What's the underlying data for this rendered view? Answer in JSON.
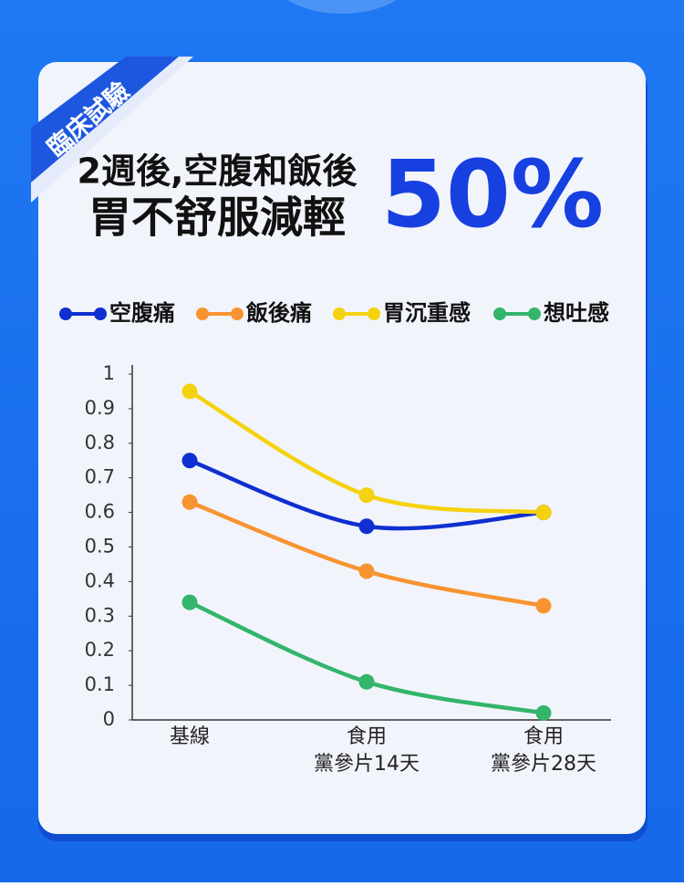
{
  "badge": "臨床試驗",
  "headline": [
    "2週後,空腹和飯後",
    "胃不舒服減輕"
  ],
  "highlight": "50%",
  "chart_data": {
    "type": "line",
    "categories": [
      "基線",
      "食用\n黨參片14天",
      "食用\n黨參片28天"
    ],
    "series": [
      {
        "name": "空腹痛",
        "color": "#0f2fd1",
        "values": [
          0.75,
          0.56,
          0.6
        ]
      },
      {
        "name": "飯後痛",
        "color": "#f79431",
        "values": [
          0.63,
          0.43,
          0.33
        ]
      },
      {
        "name": "胃沉重感",
        "color": "#f5d20f",
        "values": [
          0.95,
          0.65,
          0.6
        ]
      },
      {
        "name": "想吐感",
        "color": "#33b56b",
        "values": [
          0.34,
          0.11,
          0.02
        ]
      }
    ],
    "ylim": [
      0,
      1
    ],
    "yticks": [
      0,
      0.1,
      0.2,
      0.3,
      0.4,
      0.5,
      0.6,
      0.7,
      0.8,
      0.9,
      1
    ],
    "grid": false,
    "legend": "top"
  }
}
